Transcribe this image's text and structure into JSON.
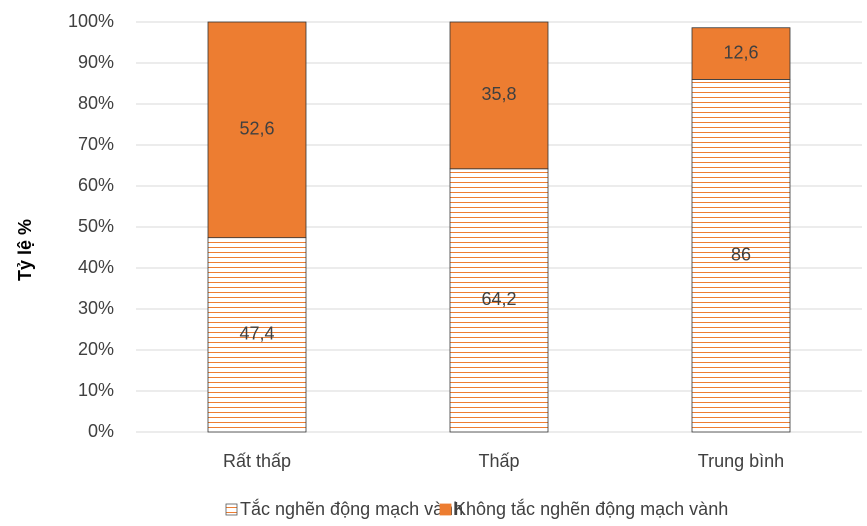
{
  "chart_data": {
    "type": "stacked_bar",
    "y_axis_label": "Tỷ lệ %",
    "categories": [
      "Rất thấp",
      "Thấp",
      "Trung bình"
    ],
    "series": [
      {
        "name": "Tắc nghẽn động mạch vành",
        "color": "#ed7d31",
        "pattern": "horizontal-lines",
        "values": [
          47.4,
          64.2,
          86
        ],
        "value_labels": [
          "47,4",
          "64,2",
          "86"
        ]
      },
      {
        "name": "Không tắc nghẽn động mạch vành",
        "color": "#ed7d31",
        "values": [
          52.6,
          35.8,
          12.6
        ],
        "value_labels": [
          "52,6",
          "35,8",
          "12,6"
        ]
      }
    ],
    "ylim": [
      0,
      100
    ],
    "yticks": [
      {
        "value": 0,
        "label": "0%"
      },
      {
        "value": 10,
        "label": "10%"
      },
      {
        "value": 20,
        "label": "20%"
      },
      {
        "value": 30,
        "label": "30%"
      },
      {
        "value": 40,
        "label": "40%"
      },
      {
        "value": 50,
        "label": "50%"
      },
      {
        "value": 60,
        "label": "60%"
      },
      {
        "value": 70,
        "label": "70%"
      },
      {
        "value": 80,
        "label": "80%"
      },
      {
        "value": 90,
        "label": "90%"
      },
      {
        "value": 100,
        "label": "100%"
      }
    ],
    "grid": true,
    "legend": "bottom"
  }
}
